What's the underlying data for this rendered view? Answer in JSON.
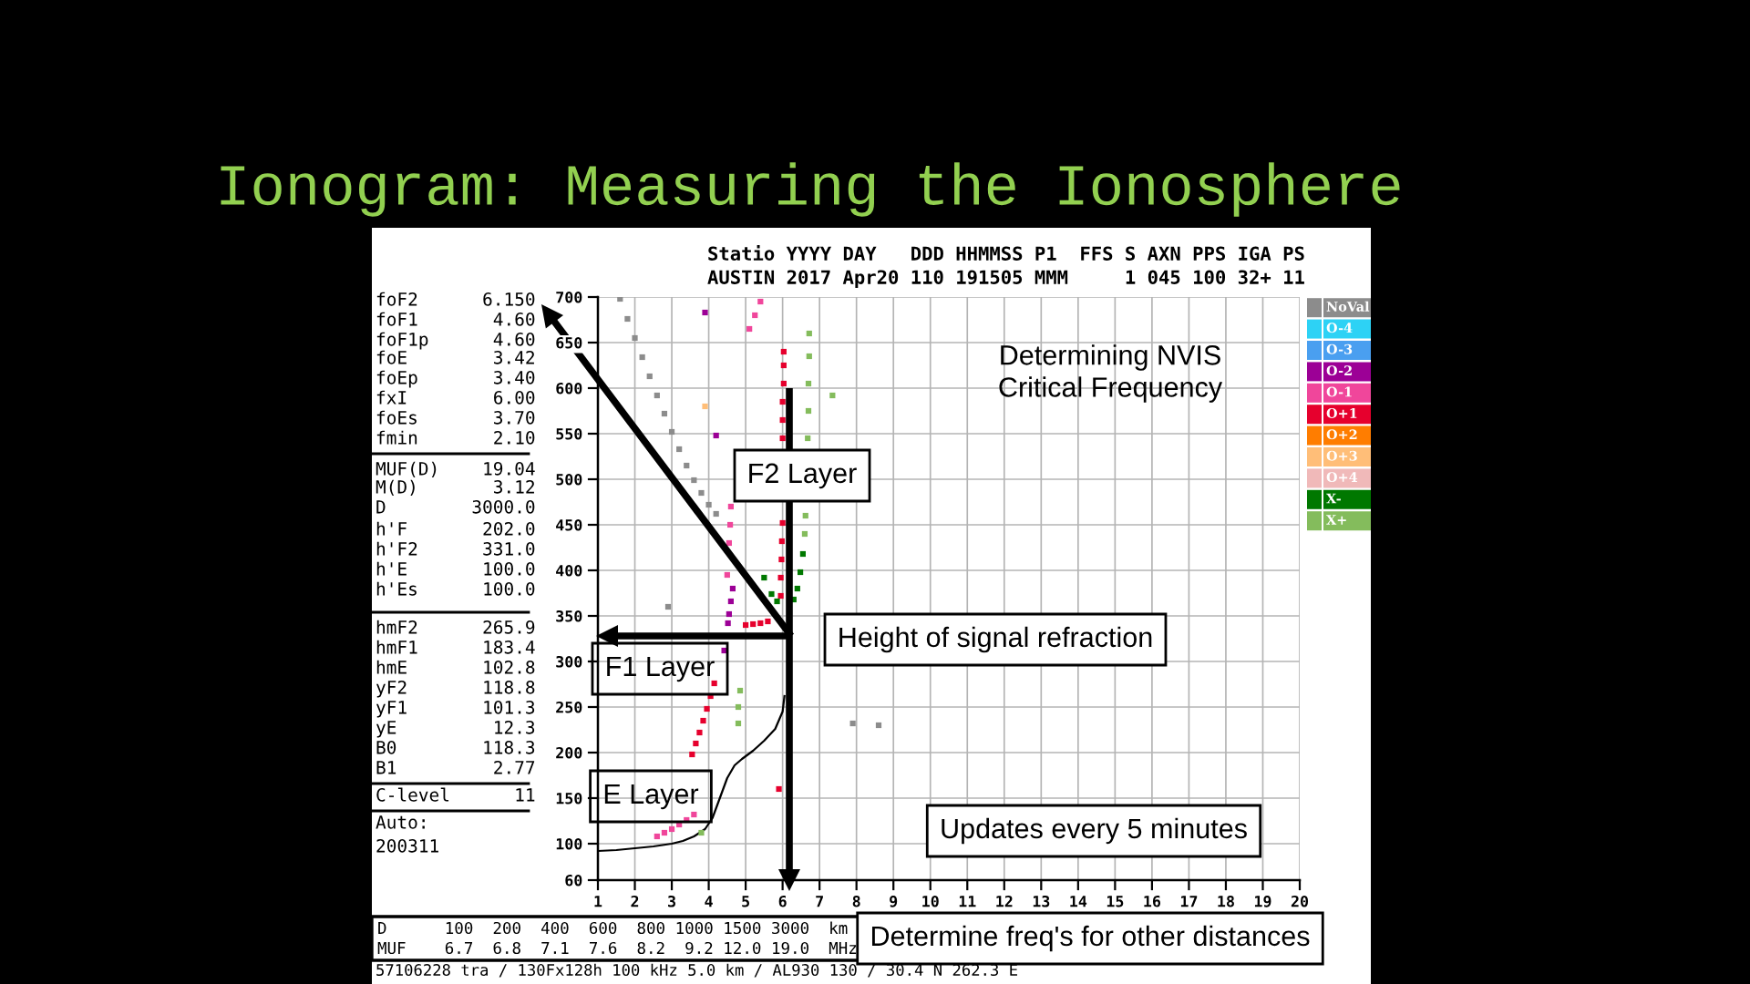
{
  "chart_data": {
    "type": "scatter",
    "title": "Ionogram: Measuring the Ionosphere",
    "xlim": [
      1,
      20
    ],
    "ylim": [
      60,
      700
    ],
    "xticks": [
      1,
      2,
      3,
      4,
      5,
      6,
      7,
      8,
      9,
      10,
      11,
      12,
      13,
      14,
      15,
      16,
      17,
      18,
      19,
      20
    ],
    "yticks": [
      60,
      100,
      150,
      200,
      250,
      300,
      350,
      400,
      450,
      500,
      550,
      600,
      650,
      700
    ],
    "grid": true,
    "legend": "right",
    "marker": "square",
    "annotations": [
      "Statio YYYY DAY   DDD HHMMSS P1  FFS S AXN PPS IGA PS",
      "AUSTIN 2017 Apr20 110 191505 MMM     1 045 100 32+ 11",
      "foF2      6.150",
      "foF1       4.60",
      "foF1p      4.60",
      "foE        3.42",
      "foEp       3.40",
      "fxI        6.00",
      "foEs       3.70",
      "fmin       2.10",
      "MUF(D)    19.04",
      "M(D)       3.12",
      "D        3000.0",
      "h'F       202.0",
      "h'F2      331.0",
      "h'E       100.0",
      "h'Es      100.0",
      "hmF2      265.9",
      "hmF1      183.4",
      "hmE       102.8",
      "yF2       118.8",
      "yF1       101.3",
      "yE         12.3",
      "B0        118.3",
      "B1         2.77",
      "C-level      11",
      "Auto:",
      "200311",
      "D      100  200  400  600  800 1000 1500 3000  km",
      "MUF    6.7  6.8  7.1  7.6  8.2  9.2 12.0 19.0  MHz",
      "57106228 tra / 130Fx128h 100 kHz 5.0 km / AL930 130 / 30.4 N 262.3 E",
      "Determining NVIS\nCritical Frequency",
      "F2 Layer",
      "F1 Layer",
      "E Layer",
      "Height of signal refraction",
      "Updates every 5 minutes",
      "Determine freq's for other distances"
    ],
    "series": [
      {
        "name": "NoVal",
        "color": "#8c8c8c",
        "x": [
          1.6,
          1.8,
          2.0,
          2.2,
          2.4,
          2.6,
          2.8,
          3.0,
          3.2,
          3.4,
          3.6,
          3.8,
          4.0,
          4.2,
          2.9,
          7.9,
          8.6
        ],
        "values": [
          698,
          676,
          655,
          634,
          613,
          592,
          572,
          552,
          533,
          515,
          499,
          485,
          472,
          462,
          360,
          232,
          230
        ]
      },
      {
        "name": "O-4",
        "color": "#2dd2f5"
      },
      {
        "name": "O-3",
        "color": "#4a9ff0"
      },
      {
        "name": "O-2",
        "color": "#9c0096",
        "x": [
          3.9,
          4.2,
          4.42,
          4.52,
          4.55,
          4.6,
          4.65
        ],
        "values": [
          683,
          548,
          312,
          342,
          352,
          366,
          380
        ]
      },
      {
        "name": "O-1",
        "color": "#f0469b",
        "x": [
          2.6,
          2.8,
          3.0,
          3.2,
          3.4,
          3.6,
          4.5,
          4.55,
          4.58,
          4.6,
          5.1,
          5.25,
          5.4
        ],
        "values": [
          108,
          112,
          116,
          121,
          126,
          132,
          395,
          430,
          450,
          470,
          665,
          680,
          695
        ]
      },
      {
        "name": "O+1",
        "color": "#e6002d",
        "x": [
          3.55,
          3.65,
          3.75,
          3.85,
          3.95,
          4.05,
          4.15,
          5.0,
          5.2,
          5.4,
          5.6,
          5.95,
          5.95,
          5.97,
          5.98,
          6.0,
          6.0,
          6.0,
          6.0,
          6.03,
          6.03,
          6.03,
          5.9
        ],
        "values": [
          198,
          210,
          222,
          235,
          248,
          262,
          276,
          340,
          341,
          342,
          344,
          372,
          392,
          412,
          432,
          452,
          545,
          565,
          585,
          605,
          625,
          640,
          160
        ]
      },
      {
        "name": "O+2",
        "color": "#ff7d00"
      },
      {
        "name": "O+3",
        "color": "#ffbe78",
        "x": [
          3.9
        ],
        "values": [
          580
        ]
      },
      {
        "name": "O+4",
        "color": "#f0b9b9"
      },
      {
        "name": "X-",
        "color": "#007800",
        "x": [
          5.5,
          5.7,
          5.85,
          6.3,
          6.4,
          6.48,
          6.55
        ],
        "values": [
          392,
          374,
          366,
          368,
          380,
          398,
          418
        ]
      },
      {
        "name": "X+",
        "color": "#84bc5c",
        "x": [
          6.6,
          6.62,
          6.68,
          6.7,
          6.7,
          6.72,
          6.72,
          7.35,
          4.8,
          4.8,
          4.85,
          3.8
        ],
        "values": [
          440,
          460,
          545,
          575,
          605,
          635,
          660,
          592,
          232,
          250,
          268,
          112
        ]
      },
      {
        "type": "line",
        "color": "#000000",
        "marker": "none",
        "x": [
          1.0,
          1.5,
          2.0,
          2.5,
          3.0,
          3.3,
          3.6,
          3.9,
          4.1,
          4.3,
          4.5,
          4.7,
          4.9,
          5.2,
          5.5,
          5.8,
          6.0,
          6.05
        ],
        "values": [
          92,
          93,
          95,
          97,
          100,
          103,
          108,
          116,
          128,
          150,
          172,
          186,
          193,
          202,
          213,
          226,
          245,
          262
        ]
      }
    ]
  }
}
